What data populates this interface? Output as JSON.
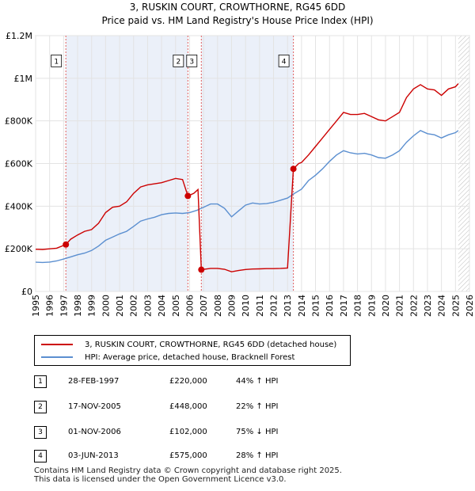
{
  "chart_data": {
    "type": "line",
    "title": "3, RUSKIN COURT, CROWTHORNE, RG45 6DD",
    "subtitle": "Price paid vs. HM Land Registry's House Price Index (HPI)",
    "xlim": [
      1995,
      2026
    ],
    "ylim": [
      0,
      1200000
    ],
    "x_ticks": [
      "1995",
      "1996",
      "1997",
      "1998",
      "1999",
      "2000",
      "2001",
      "2002",
      "2003",
      "2004",
      "2005",
      "2006",
      "2007",
      "2008",
      "2009",
      "2010",
      "2011",
      "2012",
      "2013",
      "2014",
      "2015",
      "2016",
      "2017",
      "2018",
      "2019",
      "2020",
      "2021",
      "2022",
      "2023",
      "2024",
      "2025",
      "2026"
    ],
    "y_ticks": [
      {
        "value": 0,
        "label": "£0"
      },
      {
        "value": 200000,
        "label": "£200K"
      },
      {
        "value": 400000,
        "label": "£400K"
      },
      {
        "value": 600000,
        "label": "£600K"
      },
      {
        "value": 800000,
        "label": "£800K"
      },
      {
        "value": 1000000,
        "label": "£1M"
      },
      {
        "value": 1200000,
        "label": "£1.2M"
      }
    ],
    "grid": true,
    "future_hatch_from": 2025.2,
    "series": [
      {
        "name": "3, RUSKIN COURT, CROWTHORNE, RG45 6DD (detached house)",
        "color": "#cc0000",
        "points": [
          [
            1995.0,
            198000
          ],
          [
            1995.5,
            197000
          ],
          [
            1996.0,
            200000
          ],
          [
            1996.5,
            203000
          ],
          [
            1997.16,
            220000
          ],
          [
            1997.5,
            245000
          ],
          [
            1998.0,
            265000
          ],
          [
            1998.5,
            282000
          ],
          [
            1999.0,
            290000
          ],
          [
            1999.5,
            320000
          ],
          [
            2000.0,
            370000
          ],
          [
            2000.5,
            395000
          ],
          [
            2001.0,
            400000
          ],
          [
            2001.5,
            420000
          ],
          [
            2002.0,
            460000
          ],
          [
            2002.5,
            490000
          ],
          [
            2003.0,
            500000
          ],
          [
            2003.5,
            505000
          ],
          [
            2004.0,
            510000
          ],
          [
            2004.5,
            520000
          ],
          [
            2005.0,
            530000
          ],
          [
            2005.5,
            525000
          ],
          [
            2005.88,
            448000
          ],
          [
            2006.3,
            460000
          ],
          [
            2006.6,
            478000
          ],
          [
            2006.84,
            102000
          ],
          [
            2007.5,
            108000
          ],
          [
            2008.0,
            108000
          ],
          [
            2008.5,
            104000
          ],
          [
            2009.0,
            92000
          ],
          [
            2009.5,
            98000
          ],
          [
            2010.0,
            103000
          ],
          [
            2010.5,
            105000
          ],
          [
            2011.0,
            106000
          ],
          [
            2011.5,
            107000
          ],
          [
            2012.0,
            107000
          ],
          [
            2012.5,
            108000
          ],
          [
            2013.0,
            110000
          ],
          [
            2013.42,
            575000
          ],
          [
            2013.8,
            600000
          ],
          [
            2014.0,
            605000
          ],
          [
            2014.5,
            640000
          ],
          [
            2015.0,
            680000
          ],
          [
            2015.5,
            720000
          ],
          [
            2016.0,
            760000
          ],
          [
            2016.5,
            800000
          ],
          [
            2017.0,
            840000
          ],
          [
            2017.5,
            830000
          ],
          [
            2018.0,
            830000
          ],
          [
            2018.5,
            835000
          ],
          [
            2019.0,
            820000
          ],
          [
            2019.5,
            805000
          ],
          [
            2020.0,
            800000
          ],
          [
            2020.5,
            820000
          ],
          [
            2021.0,
            840000
          ],
          [
            2021.5,
            910000
          ],
          [
            2022.0,
            950000
          ],
          [
            2022.5,
            970000
          ],
          [
            2023.0,
            950000
          ],
          [
            2023.5,
            945000
          ],
          [
            2024.0,
            920000
          ],
          [
            2024.5,
            950000
          ],
          [
            2025.0,
            960000
          ],
          [
            2025.2,
            975000
          ]
        ]
      },
      {
        "name": "HPI: Average price, detached house, Bracknell Forest",
        "color": "#5b8fd0",
        "points": [
          [
            1995.0,
            137000
          ],
          [
            1995.5,
            136000
          ],
          [
            1996.0,
            138000
          ],
          [
            1996.5,
            143000
          ],
          [
            1997.0,
            152000
          ],
          [
            1997.5,
            162000
          ],
          [
            1998.0,
            172000
          ],
          [
            1998.5,
            180000
          ],
          [
            1999.0,
            192000
          ],
          [
            1999.5,
            213000
          ],
          [
            2000.0,
            240000
          ],
          [
            2000.5,
            255000
          ],
          [
            2001.0,
            270000
          ],
          [
            2001.5,
            282000
          ],
          [
            2002.0,
            305000
          ],
          [
            2002.5,
            330000
          ],
          [
            2003.0,
            340000
          ],
          [
            2003.5,
            348000
          ],
          [
            2004.0,
            360000
          ],
          [
            2004.5,
            366000
          ],
          [
            2005.0,
            368000
          ],
          [
            2005.5,
            366000
          ],
          [
            2006.0,
            370000
          ],
          [
            2006.5,
            380000
          ],
          [
            2007.0,
            395000
          ],
          [
            2007.5,
            410000
          ],
          [
            2008.0,
            410000
          ],
          [
            2008.5,
            390000
          ],
          [
            2009.0,
            350000
          ],
          [
            2009.5,
            378000
          ],
          [
            2010.0,
            405000
          ],
          [
            2010.5,
            415000
          ],
          [
            2011.0,
            410000
          ],
          [
            2011.5,
            412000
          ],
          [
            2012.0,
            418000
          ],
          [
            2012.5,
            428000
          ],
          [
            2013.0,
            438000
          ],
          [
            2013.5,
            460000
          ],
          [
            2014.0,
            480000
          ],
          [
            2014.5,
            520000
          ],
          [
            2015.0,
            545000
          ],
          [
            2015.5,
            575000
          ],
          [
            2016.0,
            610000
          ],
          [
            2016.5,
            640000
          ],
          [
            2017.0,
            660000
          ],
          [
            2017.5,
            650000
          ],
          [
            2018.0,
            645000
          ],
          [
            2018.5,
            648000
          ],
          [
            2019.0,
            640000
          ],
          [
            2019.5,
            628000
          ],
          [
            2020.0,
            625000
          ],
          [
            2020.5,
            640000
          ],
          [
            2021.0,
            660000
          ],
          [
            2021.5,
            700000
          ],
          [
            2022.0,
            730000
          ],
          [
            2022.5,
            755000
          ],
          [
            2023.0,
            740000
          ],
          [
            2023.5,
            735000
          ],
          [
            2024.0,
            720000
          ],
          [
            2024.5,
            735000
          ],
          [
            2025.0,
            745000
          ],
          [
            2025.2,
            755000
          ]
        ]
      }
    ],
    "sale_points": [
      {
        "label": "1",
        "x": 1997.16,
        "y": 220000
      },
      {
        "label": "2",
        "x": 2005.88,
        "y": 448000
      },
      {
        "label": "3",
        "x": 2006.84,
        "y": 102000
      },
      {
        "label": "4",
        "x": 2013.42,
        "y": 575000
      }
    ],
    "marker_label_level": 1050000,
    "shaded_ranges": [
      [
        1997.16,
        2005.88
      ],
      [
        2006.84,
        2013.42
      ]
    ]
  },
  "legend": {
    "property_label": "3, RUSKIN COURT, CROWTHORNE, RG45 6DD (detached house)",
    "hpi_label": "HPI: Average price, detached house, Bracknell Forest"
  },
  "sales": [
    {
      "num": "1",
      "date": "28-FEB-1997",
      "price": "£220,000",
      "hpi": "44% ↑ HPI"
    },
    {
      "num": "2",
      "date": "17-NOV-2005",
      "price": "£448,000",
      "hpi": "22% ↑ HPI"
    },
    {
      "num": "3",
      "date": "01-NOV-2006",
      "price": "£102,000",
      "hpi": "75% ↓ HPI"
    },
    {
      "num": "4",
      "date": "03-JUN-2013",
      "price": "£575,000",
      "hpi": "28% ↑ HPI"
    }
  ],
  "footer": {
    "line1": "Contains HM Land Registry data © Crown copyright and database right 2025.",
    "line2": "This data is licensed under the Open Government Licence v3.0."
  }
}
